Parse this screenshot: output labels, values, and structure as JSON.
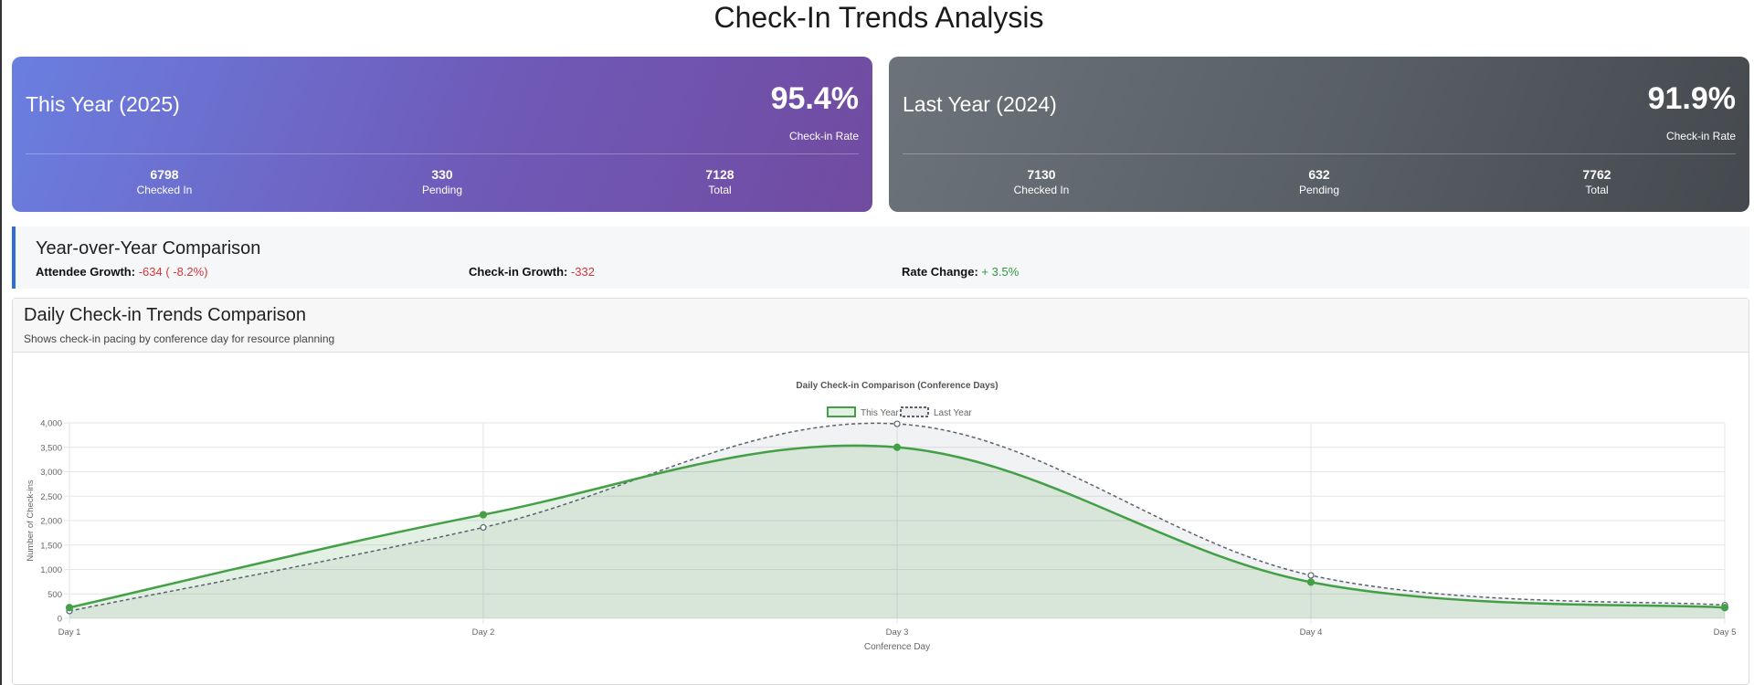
{
  "page": {
    "title": "Check-In Trends Analysis"
  },
  "this_year": {
    "year_label": "This Year (2025)",
    "rate": "95.4%",
    "rate_label": "Check-in Rate",
    "checked_in": "6798",
    "checked_in_label": "Checked In",
    "pending": "330",
    "pending_label": "Pending",
    "total": "7128",
    "total_label": "Total"
  },
  "last_year": {
    "year_label": "Last Year (2024)",
    "rate": "91.9%",
    "rate_label": "Check-in Rate",
    "checked_in": "7130",
    "checked_in_label": "Checked In",
    "pending": "632",
    "pending_label": "Pending",
    "total": "7762",
    "total_label": "Total"
  },
  "yoy": {
    "title": "Year-over-Year Comparison",
    "attendee_growth_label": "Attendee Growth:",
    "attendee_growth_value": "-634 ( -8.2%)",
    "checkin_growth_label": "Check-in Growth:",
    "checkin_growth_value": "-332",
    "rate_change_label": "Rate Change:",
    "rate_change_value": "+ 3.5%"
  },
  "daily_panel": {
    "heading": "Daily Check-in Trends Comparison",
    "subtitle": "Shows check-in pacing by conference day for resource planning"
  },
  "colors": {
    "this_year": "#43a047",
    "last_year": "#5a6270",
    "accent": "#2f6fd6",
    "negative": "#d3373b",
    "positive": "#2f9a43"
  },
  "chart_data": {
    "type": "line",
    "title": "Daily Check-in Comparison (Conference Days)",
    "xlabel": "Conference Day",
    "ylabel": "Number of Check-ins",
    "categories": [
      "Day 1",
      "Day 2",
      "Day 3",
      "Day 4",
      "Day 5"
    ],
    "ylim": [
      0,
      4000
    ],
    "yticks": [
      0,
      500,
      1000,
      1500,
      2000,
      2500,
      3000,
      3500,
      4000
    ],
    "ytick_labels": [
      "0",
      "500",
      "1,000",
      "1,500",
      "2,000",
      "2,500",
      "3,000",
      "3,500",
      "4,000"
    ],
    "grid": true,
    "legend_position": "top-center",
    "series": [
      {
        "name": "This Year",
        "values": [
          220,
          2120,
          3500,
          740,
          220
        ],
        "style": "solid",
        "filled": true
      },
      {
        "name": "Last Year",
        "values": [
          150,
          1860,
          3980,
          880,
          270
        ],
        "style": "dashed",
        "filled": true
      }
    ]
  }
}
